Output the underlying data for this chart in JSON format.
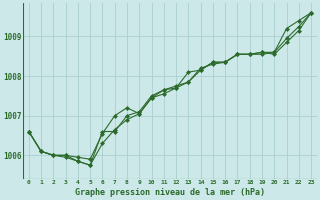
{
  "background_color": "#cce8e8",
  "grid_color": "#aacece",
  "line_color": "#2d6b2d",
  "marker_color": "#2d6b2d",
  "title": "Graphe pression niveau de la mer (hPa)",
  "xlim": [
    -0.5,
    23.5
  ],
  "ylim": [
    1005.4,
    1009.85
  ],
  "yticks": [
    1006,
    1007,
    1008,
    1009
  ],
  "xticks": [
    0,
    1,
    2,
    3,
    4,
    5,
    6,
    7,
    8,
    9,
    10,
    11,
    12,
    13,
    14,
    15,
    16,
    17,
    18,
    19,
    20,
    21,
    22,
    23
  ],
  "series1": [
    1006.6,
    1006.1,
    1006.0,
    1005.95,
    1005.85,
    1005.75,
    1006.3,
    1006.65,
    1006.9,
    1007.05,
    1007.45,
    1007.55,
    1007.7,
    1008.1,
    1008.15,
    1008.35,
    1008.35,
    1008.55,
    1008.55,
    1008.55,
    1008.6,
    1009.2,
    1009.4,
    1009.6
  ],
  "series2": [
    1006.6,
    1006.1,
    1006.0,
    1006.0,
    1005.95,
    1005.9,
    1006.55,
    1007.0,
    1007.2,
    1007.05,
    1007.45,
    1007.65,
    1007.7,
    1007.85,
    1008.15,
    1008.35,
    1008.35,
    1008.55,
    1008.55,
    1008.6,
    1008.55,
    1008.85,
    1009.15,
    1009.6
  ],
  "series3": [
    1006.6,
    1006.1,
    1006.0,
    1006.0,
    1005.85,
    1005.75,
    1006.6,
    1006.6,
    1007.0,
    1007.1,
    1007.5,
    1007.65,
    1007.75,
    1007.85,
    1008.2,
    1008.3,
    1008.35,
    1008.55,
    1008.55,
    1008.6,
    1008.6,
    1008.95,
    1009.25,
    1009.6
  ]
}
